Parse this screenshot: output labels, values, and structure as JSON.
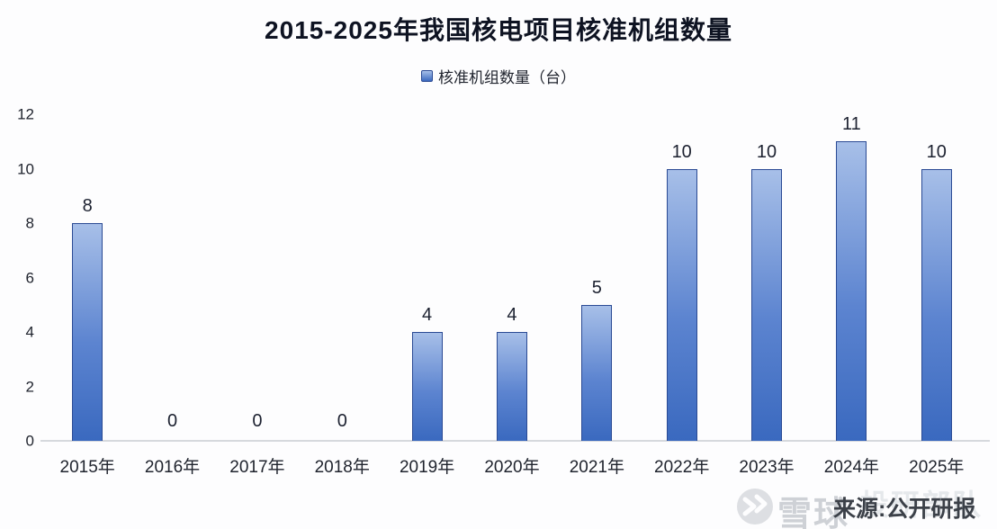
{
  "chart_data": {
    "type": "bar",
    "title": "2015-2025年我国核电项目核准机组数量",
    "categories": [
      "2015年",
      "2016年",
      "2017年",
      "2018年",
      "2019年",
      "2020年",
      "2021年",
      "2022年",
      "2023年",
      "2024年",
      "2025年"
    ],
    "values": [
      8,
      0,
      0,
      0,
      4,
      4,
      5,
      10,
      10,
      11,
      10
    ],
    "series_name": "核准机组数量（台）",
    "xlabel": "",
    "ylabel": "",
    "ylim": [
      0,
      12
    ],
    "y_ticks": [
      0,
      2,
      4,
      6,
      8,
      10,
      12
    ],
    "grid": false,
    "legend_position": "top",
    "data_labels": true
  },
  "legend": {
    "label": "核准机组数量（台）",
    "marker_icon": "bar-series-swatch"
  },
  "colors": {
    "bar_top": "#a7bfe8",
    "bar_bottom": "#3a69bf",
    "bar_border": "#2a4a94",
    "axis_line": "#d6d9dd",
    "title_text": "#0e1322",
    "label_text": "#20242e"
  },
  "watermark": {
    "logo_icon": "xueqiu-snowball-icon",
    "brand": "雪球",
    "faint_text": "投研部队",
    "source_note": "来源:公开研报"
  }
}
